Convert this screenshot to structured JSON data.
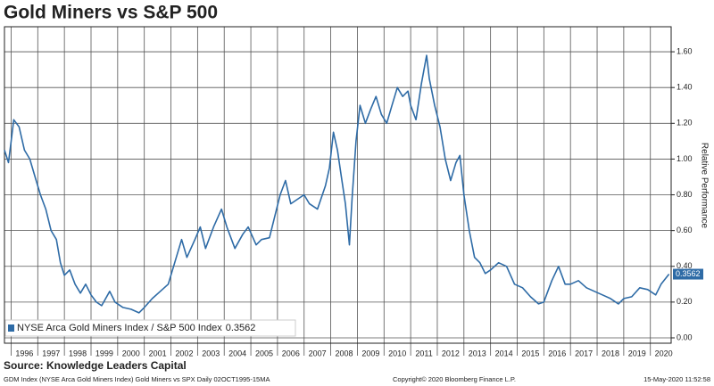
{
  "chart_data": {
    "type": "line",
    "title": "Gold Miners vs S&P 500",
    "y_label": "Relative Performance",
    "source": "Source: Knowledge Leaders Capital",
    "footer_left": "GDM Index (NYSE Arca Gold Miners Index) Gold Miners vs SPX  Daily 02OCT1995-15MA",
    "footer_center": "Copyright© 2020 Bloomberg Finance L.P.",
    "footer_right": "15-May-2020 11:52:58",
    "grid": true,
    "xlim": [
      1995.75,
      2020.78
    ],
    "xticks": [
      1996,
      1997,
      1998,
      1999,
      2000,
      2001,
      2002,
      2003,
      2004,
      2005,
      2006,
      2007,
      2008,
      2009,
      2010,
      2011,
      2012,
      2013,
      2014,
      2015,
      2016,
      2017,
      2018,
      2019,
      2020
    ],
    "ylim": [
      -0.03,
      1.74
    ],
    "yticks": [
      {
        "value": 0,
        "label": "0.00"
      },
      {
        "value": 0.2,
        "label": "0.20"
      },
      {
        "value": 0.4,
        "label": "0.40"
      },
      {
        "value": 0.6,
        "label": "0.60"
      },
      {
        "value": 0.8,
        "label": "0.80"
      },
      {
        "value": 1,
        "label": "1.00"
      },
      {
        "value": 1.2,
        "label": "1.20"
      },
      {
        "value": 1.4,
        "label": "1.40"
      },
      {
        "value": 1.6,
        "label": "1.60"
      }
    ],
    "x": [
      1995.75,
      1995.9,
      1996.0,
      1996.1,
      1996.3,
      1996.5,
      1996.7,
      1996.9,
      1997.1,
      1997.3,
      1997.5,
      1997.7,
      1997.85,
      1998.0,
      1998.2,
      1998.4,
      1998.6,
      1998.8,
      1999.0,
      1999.2,
      1999.4,
      1999.7,
      1999.9,
      2000.2,
      2000.5,
      2000.8,
      2001.0,
      2001.3,
      2001.6,
      2001.9,
      2002.1,
      2002.4,
      2002.6,
      2002.9,
      2003.1,
      2003.3,
      2003.6,
      2003.9,
      2004.1,
      2004.4,
      2004.7,
      2004.9,
      2005.2,
      2005.4,
      2005.7,
      2005.9,
      2006.1,
      2006.3,
      2006.5,
      2006.8,
      2007.0,
      2007.2,
      2007.5,
      2007.8,
      2007.95,
      2008.1,
      2008.25,
      2008.4,
      2008.55,
      2008.7,
      2008.8,
      2008.95,
      2009.1,
      2009.3,
      2009.5,
      2009.7,
      2009.9,
      2010.1,
      2010.3,
      2010.5,
      2010.7,
      2010.9,
      2011.0,
      2011.2,
      2011.4,
      2011.6,
      2011.7,
      2011.9,
      2012.1,
      2012.3,
      2012.5,
      2012.7,
      2012.85,
      2013.0,
      2013.2,
      2013.4,
      2013.6,
      2013.8,
      2014.0,
      2014.3,
      2014.6,
      2014.9,
      2015.2,
      2015.5,
      2015.8,
      2016.0,
      2016.3,
      2016.55,
      2016.8,
      2017.0,
      2017.3,
      2017.6,
      2017.9,
      2018.2,
      2018.5,
      2018.8,
      2019.0,
      2019.3,
      2019.6,
      2019.9,
      2020.2,
      2020.4,
      2020.7
    ],
    "series": [
      {
        "name": "NYSE Arca Gold Miners Index / S&P 500 Index",
        "color": "#2e6ba6",
        "values": [
          1.05,
          0.98,
          1.1,
          1.22,
          1.18,
          1.05,
          1.0,
          0.9,
          0.8,
          0.72,
          0.6,
          0.55,
          0.42,
          0.35,
          0.38,
          0.3,
          0.25,
          0.3,
          0.24,
          0.2,
          0.18,
          0.26,
          0.2,
          0.17,
          0.16,
          0.14,
          0.17,
          0.22,
          0.26,
          0.3,
          0.4,
          0.55,
          0.45,
          0.55,
          0.62,
          0.5,
          0.62,
          0.72,
          0.62,
          0.5,
          0.58,
          0.62,
          0.52,
          0.55,
          0.56,
          0.68,
          0.8,
          0.88,
          0.75,
          0.78,
          0.8,
          0.75,
          0.72,
          0.85,
          0.95,
          1.15,
          1.05,
          0.9,
          0.75,
          0.52,
          0.78,
          1.1,
          1.3,
          1.2,
          1.28,
          1.35,
          1.25,
          1.2,
          1.3,
          1.4,
          1.35,
          1.38,
          1.3,
          1.22,
          1.42,
          1.58,
          1.45,
          1.3,
          1.18,
          1.0,
          0.88,
          0.98,
          1.02,
          0.8,
          0.6,
          0.45,
          0.42,
          0.36,
          0.38,
          0.42,
          0.4,
          0.3,
          0.28,
          0.23,
          0.19,
          0.2,
          0.32,
          0.4,
          0.3,
          0.3,
          0.32,
          0.28,
          0.26,
          0.24,
          0.22,
          0.19,
          0.22,
          0.23,
          0.28,
          0.27,
          0.24,
          0.3,
          0.3562
        ]
      }
    ]
  }
}
